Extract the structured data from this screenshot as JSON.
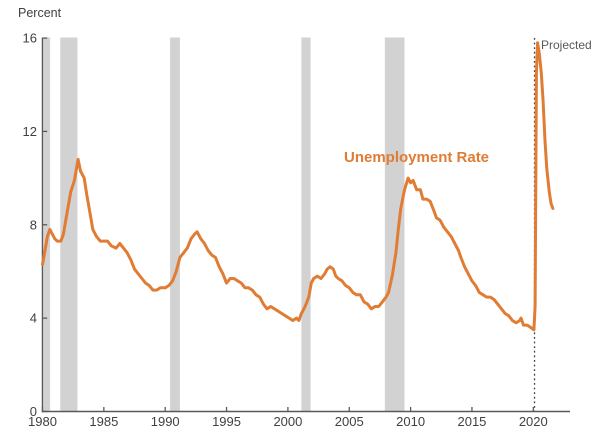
{
  "header": {
    "unit_label": "Percent"
  },
  "annotations": {
    "projected_label": "Projected",
    "series_label": "Unemployment Rate"
  },
  "colors": {
    "line": "#E07C33",
    "series_label": "#E07C33",
    "recession_band": "#D2D2D2",
    "axis": "#58595B",
    "tick_text": "#414042",
    "projected_text": "#58595B",
    "divider": "#3F3F3F",
    "background": "#FFFFFF"
  },
  "chart_data": {
    "type": "line",
    "title": "",
    "xlabel": "",
    "ylabel": "Percent",
    "legend": "inline-label",
    "grid": false,
    "xlim": [
      1980,
      2022.5
    ],
    "ylim": [
      0,
      16
    ],
    "xticks": [
      1980,
      1985,
      1990,
      1995,
      2000,
      2005,
      2010,
      2015,
      2020
    ],
    "yticks": [
      0,
      4,
      8,
      12,
      16
    ],
    "recession_bands": [
      [
        1980.1,
        1980.62
      ],
      [
        1981.45,
        1982.85
      ],
      [
        1990.4,
        1991.2
      ],
      [
        2001.1,
        2001.85
      ],
      [
        2007.9,
        2009.5
      ]
    ],
    "projection_start": 2020.1,
    "series": [
      {
        "name": "Unemployment Rate",
        "points": [
          [
            1980.0,
            6.3
          ],
          [
            1980.2,
            6.9
          ],
          [
            1980.4,
            7.5
          ],
          [
            1980.6,
            7.8
          ],
          [
            1980.8,
            7.6
          ],
          [
            1981.0,
            7.4
          ],
          [
            1981.2,
            7.3
          ],
          [
            1981.5,
            7.3
          ],
          [
            1981.7,
            7.6
          ],
          [
            1982.0,
            8.5
          ],
          [
            1982.3,
            9.4
          ],
          [
            1982.6,
            9.9
          ],
          [
            1982.9,
            10.8
          ],
          [
            1983.1,
            10.3
          ],
          [
            1983.4,
            10.0
          ],
          [
            1983.6,
            9.3
          ],
          [
            1983.9,
            8.4
          ],
          [
            1984.1,
            7.8
          ],
          [
            1984.4,
            7.5
          ],
          [
            1984.7,
            7.3
          ],
          [
            1985.0,
            7.3
          ],
          [
            1985.3,
            7.3
          ],
          [
            1985.6,
            7.1
          ],
          [
            1986.0,
            7.0
          ],
          [
            1986.3,
            7.2
          ],
          [
            1986.6,
            7.0
          ],
          [
            1986.9,
            6.8
          ],
          [
            1987.2,
            6.5
          ],
          [
            1987.5,
            6.1
          ],
          [
            1987.8,
            5.9
          ],
          [
            1988.1,
            5.7
          ],
          [
            1988.4,
            5.5
          ],
          [
            1988.7,
            5.4
          ],
          [
            1989.0,
            5.2
          ],
          [
            1989.3,
            5.2
          ],
          [
            1989.6,
            5.3
          ],
          [
            1990.0,
            5.3
          ],
          [
            1990.3,
            5.4
          ],
          [
            1990.6,
            5.6
          ],
          [
            1990.9,
            6.0
          ],
          [
            1991.2,
            6.6
          ],
          [
            1991.5,
            6.8
          ],
          [
            1991.8,
            7.0
          ],
          [
            1992.1,
            7.4
          ],
          [
            1992.4,
            7.6
          ],
          [
            1992.6,
            7.7
          ],
          [
            1992.9,
            7.4
          ],
          [
            1993.2,
            7.2
          ],
          [
            1993.5,
            6.9
          ],
          [
            1993.8,
            6.7
          ],
          [
            1994.1,
            6.6
          ],
          [
            1994.4,
            6.2
          ],
          [
            1994.7,
            5.9
          ],
          [
            1995.0,
            5.5
          ],
          [
            1995.3,
            5.7
          ],
          [
            1995.6,
            5.7
          ],
          [
            1995.9,
            5.6
          ],
          [
            1996.2,
            5.5
          ],
          [
            1996.5,
            5.3
          ],
          [
            1996.8,
            5.3
          ],
          [
            1997.1,
            5.2
          ],
          [
            1997.4,
            5.0
          ],
          [
            1997.7,
            4.9
          ],
          [
            1998.0,
            4.6
          ],
          [
            1998.3,
            4.4
          ],
          [
            1998.6,
            4.5
          ],
          [
            1998.9,
            4.4
          ],
          [
            1999.2,
            4.3
          ],
          [
            1999.5,
            4.2
          ],
          [
            1999.8,
            4.1
          ],
          [
            2000.1,
            4.0
          ],
          [
            2000.4,
            3.9
          ],
          [
            2000.7,
            4.0
          ],
          [
            2000.9,
            3.9
          ],
          [
            2001.1,
            4.2
          ],
          [
            2001.4,
            4.5
          ],
          [
            2001.7,
            4.9
          ],
          [
            2001.9,
            5.5
          ],
          [
            2002.1,
            5.7
          ],
          [
            2002.4,
            5.8
          ],
          [
            2002.7,
            5.7
          ],
          [
            2003.0,
            5.9
          ],
          [
            2003.2,
            6.1
          ],
          [
            2003.45,
            6.2
          ],
          [
            2003.7,
            6.1
          ],
          [
            2003.9,
            5.8
          ],
          [
            2004.1,
            5.7
          ],
          [
            2004.4,
            5.6
          ],
          [
            2004.7,
            5.4
          ],
          [
            2005.0,
            5.3
          ],
          [
            2005.3,
            5.1
          ],
          [
            2005.6,
            5.0
          ],
          [
            2005.9,
            5.0
          ],
          [
            2006.2,
            4.7
          ],
          [
            2006.5,
            4.6
          ],
          [
            2006.8,
            4.4
          ],
          [
            2007.1,
            4.5
          ],
          [
            2007.4,
            4.5
          ],
          [
            2007.7,
            4.7
          ],
          [
            2008.0,
            4.9
          ],
          [
            2008.2,
            5.1
          ],
          [
            2008.5,
            5.8
          ],
          [
            2008.8,
            6.8
          ],
          [
            2009.0,
            7.8
          ],
          [
            2009.2,
            8.7
          ],
          [
            2009.5,
            9.5
          ],
          [
            2009.8,
            10.0
          ],
          [
            2010.0,
            9.8
          ],
          [
            2010.2,
            9.9
          ],
          [
            2010.5,
            9.5
          ],
          [
            2010.8,
            9.5
          ],
          [
            2011.0,
            9.1
          ],
          [
            2011.3,
            9.1
          ],
          [
            2011.6,
            9.0
          ],
          [
            2011.9,
            8.6
          ],
          [
            2012.1,
            8.3
          ],
          [
            2012.4,
            8.2
          ],
          [
            2012.7,
            7.9
          ],
          [
            2013.0,
            7.7
          ],
          [
            2013.3,
            7.5
          ],
          [
            2013.6,
            7.2
          ],
          [
            2013.9,
            6.9
          ],
          [
            2014.1,
            6.6
          ],
          [
            2014.4,
            6.2
          ],
          [
            2014.7,
            5.9
          ],
          [
            2015.0,
            5.6
          ],
          [
            2015.3,
            5.4
          ],
          [
            2015.6,
            5.1
          ],
          [
            2015.9,
            5.0
          ],
          [
            2016.2,
            4.9
          ],
          [
            2016.5,
            4.9
          ],
          [
            2016.8,
            4.8
          ],
          [
            2017.1,
            4.6
          ],
          [
            2017.4,
            4.4
          ],
          [
            2017.7,
            4.2
          ],
          [
            2018.0,
            4.1
          ],
          [
            2018.3,
            3.9
          ],
          [
            2018.6,
            3.8
          ],
          [
            2018.9,
            3.9
          ],
          [
            2019.0,
            4.0
          ],
          [
            2019.2,
            3.7
          ],
          [
            2019.5,
            3.7
          ],
          [
            2019.8,
            3.6
          ],
          [
            2020.05,
            3.5
          ],
          [
            2020.15,
            4.5
          ],
          [
            2020.25,
            14.5
          ],
          [
            2020.35,
            15.8
          ],
          [
            2020.5,
            15.3
          ],
          [
            2020.65,
            14.5
          ],
          [
            2020.8,
            13.3
          ],
          [
            2020.95,
            11.6
          ],
          [
            2021.1,
            10.4
          ],
          [
            2021.3,
            9.4
          ],
          [
            2021.45,
            8.9
          ],
          [
            2021.6,
            8.7
          ]
        ]
      }
    ]
  }
}
